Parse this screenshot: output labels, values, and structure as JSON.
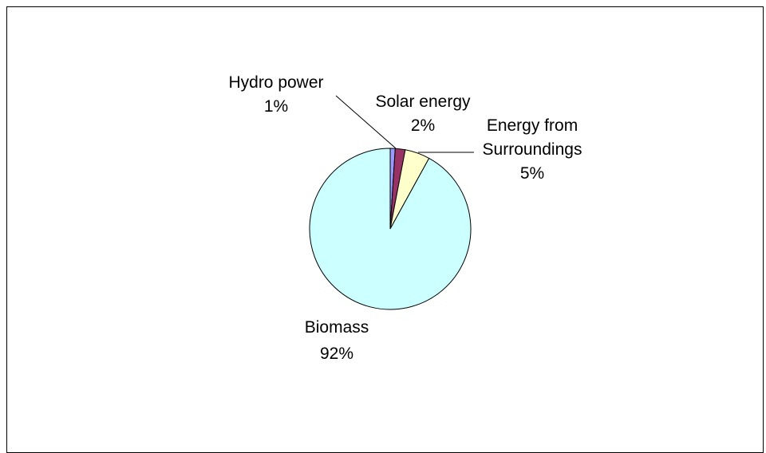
{
  "chart_data": {
    "type": "pie",
    "slices": [
      {
        "label_line1": "Hydro power",
        "label_line2": "",
        "pct_label": "1%",
        "value": 1,
        "color": "#9999ff"
      },
      {
        "label_line1": "Solar energy",
        "label_line2": "",
        "pct_label": "2%",
        "value": 2,
        "color": "#993366"
      },
      {
        "label_line1": "Energy from",
        "label_line2": "Surroundings",
        "pct_label": "5%",
        "value": 5,
        "color": "#ffffcc"
      },
      {
        "label_line1": "Biomass",
        "label_line2": "",
        "pct_label": "92%",
        "value": 92,
        "color": "#ccffff"
      }
    ],
    "start_angle_deg": 0,
    "direction": "clockwise",
    "outline_color": "#000000"
  }
}
